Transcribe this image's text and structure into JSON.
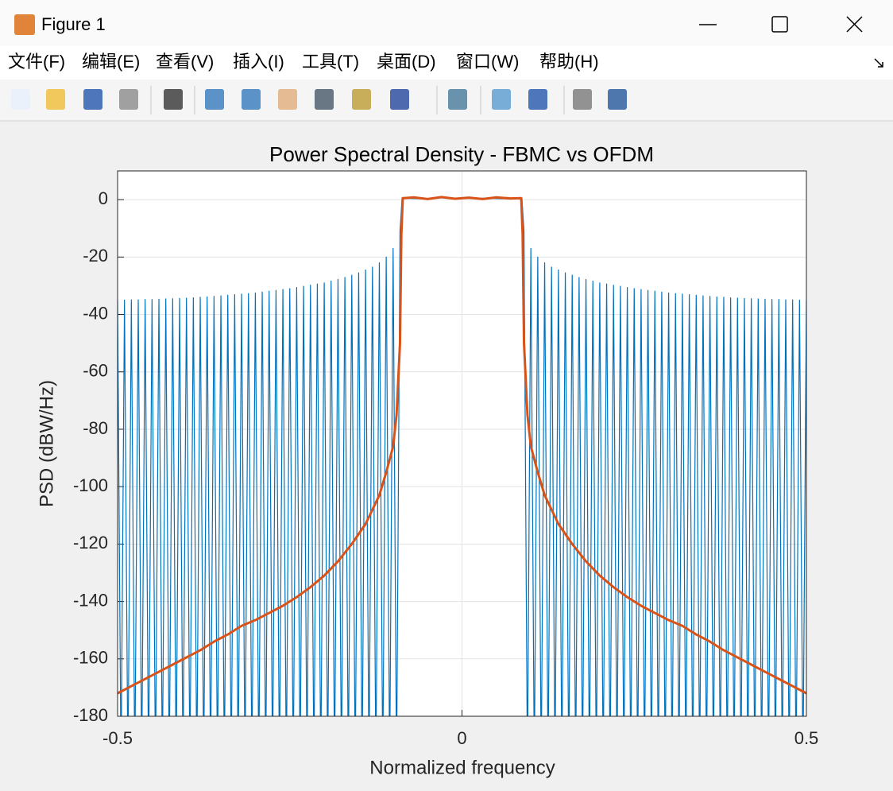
{
  "window": {
    "title": "Figure 1",
    "menu": [
      "文件(F)",
      "编辑(E)",
      "查看(V)",
      "插入(I)",
      "工具(T)",
      "桌面(D)",
      "窗口(W)",
      "帮助(H)"
    ]
  },
  "chart_data": {
    "type": "line",
    "title": "Power Spectral Density - FBMC vs OFDM",
    "xlabel": "Normalized frequency",
    "ylabel": "PSD (dBW/Hz)",
    "xlim": [
      -0.5,
      0.5
    ],
    "ylim": [
      -180,
      10
    ],
    "xticks": [
      -0.5,
      0,
      0.5
    ],
    "yticks": [
      0,
      -20,
      -40,
      -60,
      -80,
      -100,
      -120,
      -140,
      -160,
      -180
    ],
    "grid": true,
    "series": [
      {
        "color": "#0072bd",
        "width": 1.2,
        "x": [
          -0.5,
          -0.495,
          -0.49,
          -0.485,
          -0.48,
          -0.475,
          -0.47,
          -0.465,
          -0.46,
          -0.455,
          -0.45,
          -0.445,
          -0.44,
          -0.435,
          -0.43,
          -0.425,
          -0.42,
          -0.415,
          -0.41,
          -0.405,
          -0.4,
          -0.395,
          -0.39,
          -0.385,
          -0.38,
          -0.375,
          -0.37,
          -0.365,
          -0.36,
          -0.355,
          -0.35,
          -0.345,
          -0.34,
          -0.335,
          -0.33,
          -0.325,
          -0.32,
          -0.315,
          -0.31,
          -0.305,
          -0.3,
          -0.295,
          -0.29,
          -0.285,
          -0.28,
          -0.275,
          -0.27,
          -0.265,
          -0.26,
          -0.255,
          -0.25,
          -0.245,
          -0.24,
          -0.235,
          -0.23,
          -0.225,
          -0.22,
          -0.215,
          -0.21,
          -0.205,
          -0.2,
          -0.195,
          -0.19,
          -0.185,
          -0.18,
          -0.175,
          -0.17,
          -0.165,
          -0.16,
          -0.155,
          -0.15,
          -0.145,
          -0.14,
          -0.135,
          -0.13,
          -0.125,
          -0.12,
          -0.115,
          -0.11,
          -0.105,
          -0.1,
          -0.095,
          -0.09,
          -0.087,
          -0.06,
          -0.03,
          0,
          0.03,
          0.06,
          0.087,
          0.09,
          0.095,
          0.1,
          0.105,
          0.11,
          0.115,
          0.12,
          0.125,
          0.13,
          0.135,
          0.14,
          0.145,
          0.15,
          0.155,
          0.16,
          0.165,
          0.17,
          0.175,
          0.18,
          0.185,
          0.19,
          0.195,
          0.2,
          0.205,
          0.21,
          0.215,
          0.22,
          0.225,
          0.23,
          0.235,
          0.24,
          0.245,
          0.25,
          0.255,
          0.26,
          0.265,
          0.27,
          0.275,
          0.28,
          0.285,
          0.29,
          0.295,
          0.3,
          0.305,
          0.31,
          0.315,
          0.32,
          0.325,
          0.33,
          0.335,
          0.34,
          0.345,
          0.35,
          0.355,
          0.36,
          0.365,
          0.37,
          0.375,
          0.38,
          0.385,
          0.39,
          0.395,
          0.4,
          0.405,
          0.41,
          0.415,
          0.42,
          0.425,
          0.43,
          0.435,
          0.44,
          0.445,
          0.45,
          0.455,
          0.46,
          0.465,
          0.47,
          0.475,
          0.48,
          0.485,
          0.49,
          0.495,
          0.5
        ],
        "values": [
          -35,
          -200,
          -35,
          -200,
          -34.9,
          -200,
          -34.9,
          -200,
          -34.8,
          -200,
          -34.8,
          -200,
          -34.7,
          -200,
          -34.6,
          -200,
          -34.5,
          -200,
          -34.4,
          -200,
          -34.3,
          -200,
          -34.2,
          -200,
          -34,
          -200,
          -33.9,
          -200,
          -33.7,
          -200,
          -33.5,
          -200,
          -33.3,
          -200,
          -33.1,
          -200,
          -32.9,
          -200,
          -32.7,
          -200,
          -32.5,
          -200,
          -32.2,
          -200,
          -31.9,
          -200,
          -31.6,
          -200,
          -31.3,
          -200,
          -31,
          -200,
          -30.6,
          -200,
          -30.2,
          -200,
          -29.8,
          -200,
          -29.4,
          -200,
          -29,
          -200,
          -28.4,
          -200,
          -27.8,
          -200,
          -27.1,
          -200,
          -26.3,
          -200,
          -25.5,
          -200,
          -24.5,
          -200,
          -23.5,
          -200,
          -22,
          -200,
          -20,
          -200,
          -17,
          -200,
          -11,
          0.5,
          0.3,
          0.6,
          0.4,
          0.5,
          0.3,
          0.5,
          -11,
          -200,
          -17,
          -200,
          -20,
          -200,
          -22,
          -200,
          -23.5,
          -200,
          -24.5,
          -200,
          -25.5,
          -200,
          -26.3,
          -200,
          -27.1,
          -200,
          -27.8,
          -200,
          -28.4,
          -200,
          -29,
          -200,
          -29.4,
          -200,
          -29.8,
          -200,
          -30.2,
          -200,
          -30.6,
          -200,
          -31,
          -200,
          -31.3,
          -200,
          -31.6,
          -200,
          -31.9,
          -200,
          -32.2,
          -200,
          -32.5,
          -200,
          -32.7,
          -200,
          -32.9,
          -200,
          -33.1,
          -200,
          -33.3,
          -200,
          -33.5,
          -200,
          -33.7,
          -200,
          -33.9,
          -200,
          -34,
          -200,
          -34.2,
          -200,
          -34.3,
          -200,
          -34.4,
          -200,
          -34.5,
          -200,
          -34.6,
          -200,
          -34.7,
          -200,
          -34.8,
          -200,
          -34.8,
          -200,
          -34.9,
          -200,
          -34.9,
          -200,
          -35,
          -200,
          -35
        ]
      },
      {
        "color": "#d95319",
        "width": 3,
        "x": [
          -0.5,
          -0.48,
          -0.46,
          -0.44,
          -0.42,
          -0.4,
          -0.38,
          -0.36,
          -0.34,
          -0.32,
          -0.3,
          -0.28,
          -0.26,
          -0.24,
          -0.22,
          -0.2,
          -0.18,
          -0.16,
          -0.14,
          -0.12,
          -0.11,
          -0.1,
          -0.095,
          -0.09,
          -0.088,
          -0.086,
          -0.07,
          -0.05,
          -0.03,
          -0.01,
          0.01,
          0.03,
          0.05,
          0.07,
          0.086,
          0.088,
          0.09,
          0.095,
          0.1,
          0.11,
          0.12,
          0.14,
          0.16,
          0.18,
          0.2,
          0.22,
          0.24,
          0.26,
          0.28,
          0.3,
          0.32,
          0.34,
          0.36,
          0.38,
          0.4,
          0.42,
          0.44,
          0.46,
          0.48,
          0.5
        ],
        "values": [
          -172,
          -169.5,
          -167,
          -164.5,
          -162,
          -159.5,
          -157,
          -154,
          -151.5,
          -148.5,
          -146.5,
          -144,
          -141.5,
          -138.5,
          -135,
          -131,
          -126,
          -120,
          -113,
          -103,
          -95,
          -86,
          -75,
          -50,
          -12,
          0.5,
          0.8,
          0.2,
          0.9,
          0.3,
          0.7,
          0.2,
          0.8,
          0.4,
          0.5,
          -12,
          -50,
          -75,
          -86,
          -95,
          -103,
          -113,
          -120,
          -126,
          -131,
          -135,
          -138.5,
          -141.5,
          -144,
          -146.5,
          -148.5,
          -151.5,
          -154,
          -157,
          -159.5,
          -162,
          -164.5,
          -167,
          -169.5,
          -172
        ]
      }
    ]
  }
}
